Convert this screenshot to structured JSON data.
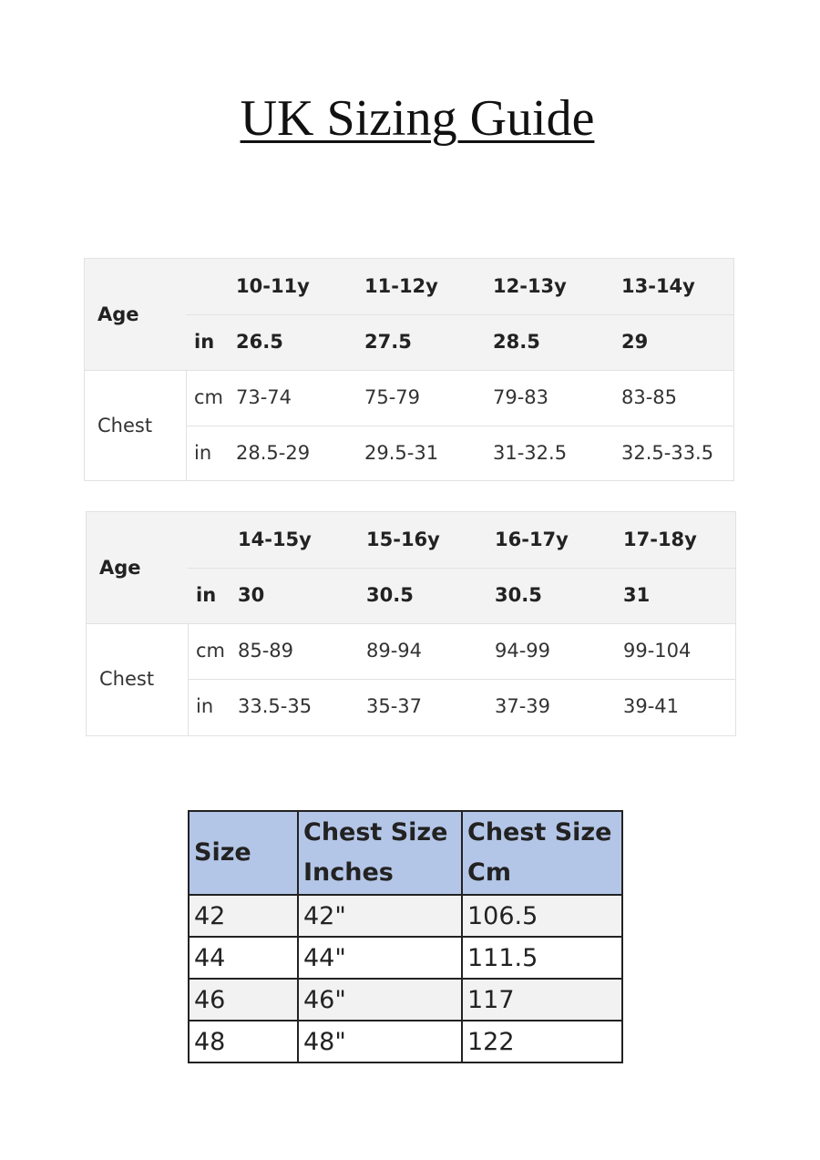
{
  "title": "UK Sizing Guide",
  "age_tables": [
    {
      "age_label": "Age",
      "ages": [
        "10-11y",
        "11-12y",
        "12-13y",
        "13-14y"
      ],
      "age_in_unit": "in",
      "age_in": [
        "26.5",
        "27.5",
        "28.5",
        "29"
      ],
      "chest_label": "Chest",
      "cm_unit": "cm",
      "chest_cm": [
        "73-74",
        "75-79",
        "79-83",
        "83-85"
      ],
      "in_unit": "in",
      "chest_in": [
        "28.5-29",
        "29.5-31",
        "31-32.5",
        "32.5-33.5"
      ]
    },
    {
      "age_label": "Age",
      "ages": [
        "14-15y",
        "15-16y",
        "16-17y",
        "17-18y"
      ],
      "age_in_unit": "in",
      "age_in": [
        "30",
        "30.5",
        "30.5",
        "31"
      ],
      "chest_label": "Chest",
      "cm_unit": "cm",
      "chest_cm": [
        "85-89",
        "89-94",
        "94-99",
        "99-104"
      ],
      "in_unit": "in",
      "chest_in": [
        "33.5-35",
        "35-37",
        "37-39",
        "39-41"
      ]
    }
  ],
  "size_table": {
    "headers": [
      "Size",
      "Chest Size Inches",
      "Chest Size Cm"
    ],
    "rows": [
      [
        "42",
        "42\"",
        "106.5"
      ],
      [
        "44",
        "44\"",
        "111.5"
      ],
      [
        "46",
        "46\"",
        "117"
      ],
      [
        "48",
        "48\"",
        "122"
      ]
    ],
    "header_color": "#b4c6e7"
  }
}
